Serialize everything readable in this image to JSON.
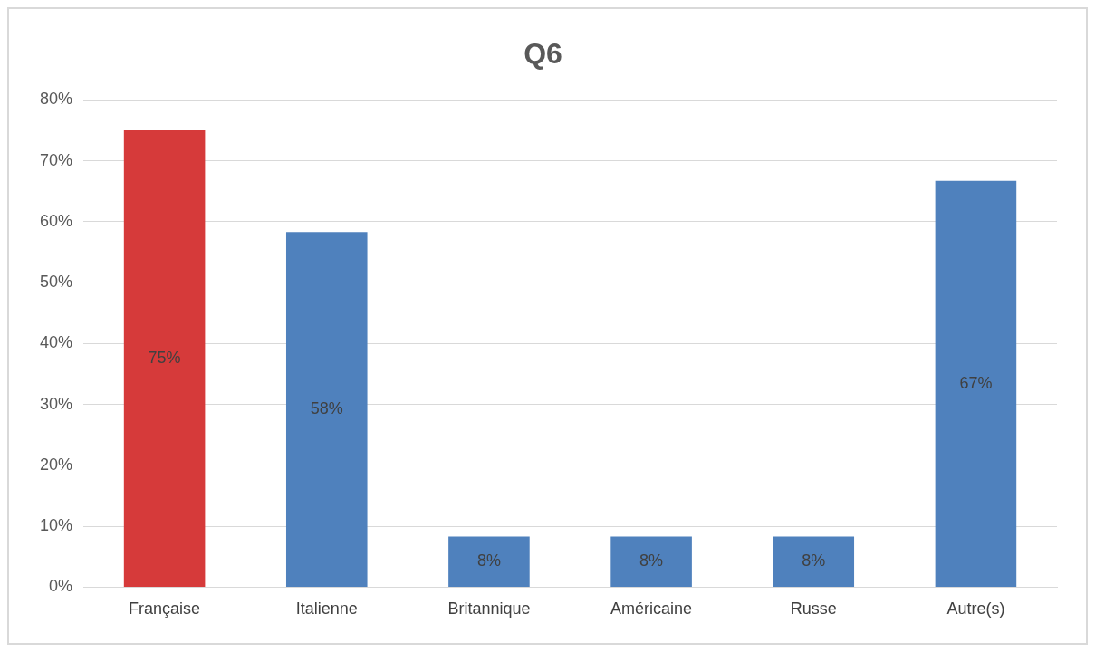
{
  "chart_data": {
    "type": "bar",
    "title": "Q6",
    "categories": [
      "Française",
      "Italienne",
      "Britannique",
      "Américaine",
      "Russe",
      "Autre(s)"
    ],
    "values": [
      75,
      58.3,
      8.3,
      8.3,
      8.3,
      66.7
    ],
    "value_labels": [
      "75%",
      "58%",
      "8%",
      "8%",
      "8%",
      "67%"
    ],
    "colors": [
      "#d63a3a",
      "#4f81bd",
      "#4f81bd",
      "#4f81bd",
      "#4f81bd",
      "#4f81bd"
    ],
    "ylim": [
      0,
      80
    ],
    "yticks": [
      {
        "value": 0,
        "label": "0%"
      },
      {
        "value": 10,
        "label": "10%"
      },
      {
        "value": 20,
        "label": "20%"
      },
      {
        "value": 30,
        "label": "30%"
      },
      {
        "value": 40,
        "label": "40%"
      },
      {
        "value": 50,
        "label": "50%"
      },
      {
        "value": 60,
        "label": "60%"
      },
      {
        "value": 70,
        "label": "70%"
      },
      {
        "value": 80,
        "label": "80%"
      }
    ],
    "grid": "y",
    "legend": false
  }
}
